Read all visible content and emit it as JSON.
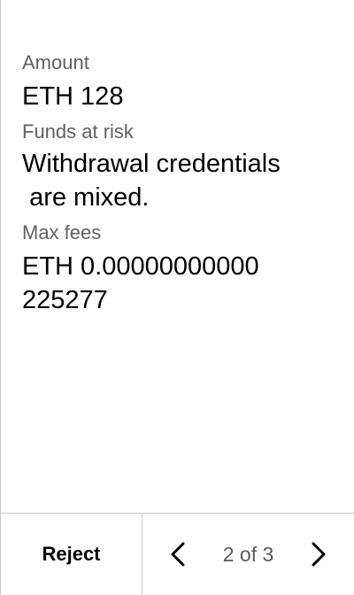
{
  "review": {
    "amount": {
      "label": "Amount",
      "value": "ETH 128"
    },
    "funds_at_risk": {
      "label": "Funds at risk",
      "value": "Withdrawal credentials\n are mixed."
    },
    "max_fees": {
      "label": "Max fees",
      "value": "ETH 0.00000000000\n225277"
    }
  },
  "footer": {
    "reject_label": "Reject",
    "prev_icon": "chevron-left-icon",
    "next_icon": "chevron-right-icon",
    "page_indicator": "2 of 3"
  }
}
